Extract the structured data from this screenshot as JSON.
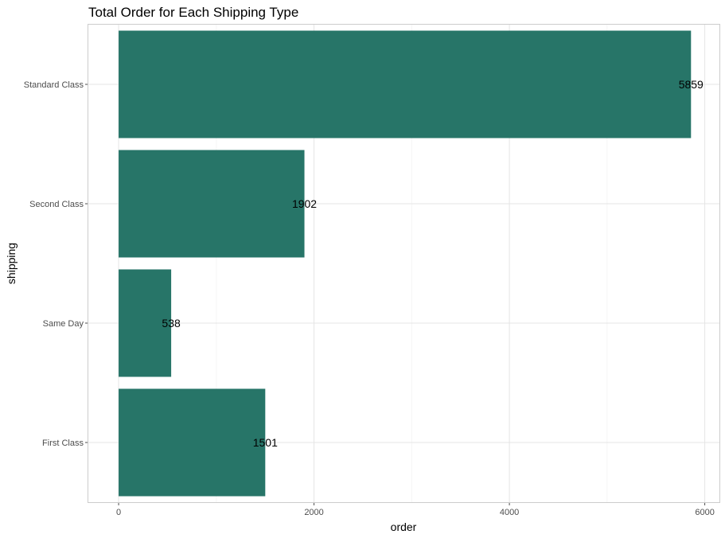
{
  "chart_data": {
    "type": "bar",
    "orientation": "horizontal",
    "title": "Total Order for Each Shipping Type",
    "xlabel": "order",
    "ylabel": "shipping",
    "categories": [
      "Standard Class",
      "Second Class",
      "Same Day",
      "First Class"
    ],
    "values": [
      5859,
      1902,
      538,
      1501
    ],
    "xlim": [
      -310,
      6150
    ],
    "xticks": [
      0,
      2000,
      4000,
      6000
    ],
    "grid": true,
    "legend": "none",
    "bar_color": "#277568"
  }
}
